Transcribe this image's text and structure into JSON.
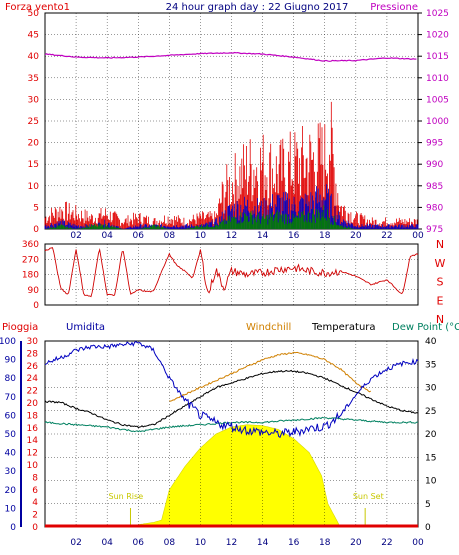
{
  "header": {
    "title": "24 hour graph day : 22 Giugno 2017",
    "left_label": "Forza vento1",
    "right_label": "Pressione"
  },
  "chart_data": [
    {
      "type": "line",
      "name": "wind-pressure",
      "x_ticks": [
        "02",
        "04",
        "06",
        "08",
        "10",
        "12",
        "14",
        "16",
        "18",
        "20",
        "22",
        "00"
      ],
      "y_left_ticks": [
        "0",
        "5",
        "10",
        "15",
        "20",
        "25",
        "30",
        "35",
        "40",
        "45",
        "50"
      ],
      "y_left_range": [
        0,
        50
      ],
      "y_right_ticks": [
        "975",
        "980",
        "985",
        "990",
        "995",
        "1000",
        "1005",
        "1010",
        "1015",
        "1020",
        "1025"
      ],
      "y_right_range": [
        975,
        1025
      ],
      "series": [
        {
          "name": "Forza vento1",
          "color": "#e00000",
          "x": [
            0,
            1,
            2,
            3,
            4,
            5,
            6,
            7,
            8,
            9,
            10,
            11,
            11.5,
            12,
            13,
            14,
            15,
            16,
            17,
            18,
            18.3,
            18.6,
            19,
            20,
            21,
            22,
            23,
            24
          ],
          "y": [
            3,
            5,
            4,
            3,
            4,
            2,
            3,
            2,
            3,
            2,
            3,
            3,
            10,
            12,
            16,
            17,
            15,
            17,
            18,
            19,
            25,
            16,
            6,
            3,
            2,
            2,
            2,
            2
          ]
        },
        {
          "name": "",
          "color": "#0000c0",
          "x": [
            0,
            1,
            2,
            3,
            4,
            5,
            6,
            7,
            8,
            9,
            10,
            11,
            12,
            13,
            14,
            15,
            16,
            17,
            18,
            19,
            20,
            21,
            22,
            23,
            24
          ],
          "y": [
            1,
            2,
            1,
            1,
            2,
            0,
            1,
            1,
            1,
            1,
            1,
            2,
            6,
            7,
            6,
            8,
            7,
            8,
            10,
            3,
            1,
            1,
            1,
            1,
            1
          ]
        },
        {
          "name": "",
          "color": "#008000",
          "x": [
            0,
            1,
            2,
            3,
            4,
            5,
            6,
            7,
            8,
            9,
            10,
            11,
            12,
            13,
            14,
            15,
            16,
            17,
            18,
            19,
            20,
            21,
            22,
            23,
            24
          ],
          "y": [
            0,
            1,
            0,
            1,
            1,
            0,
            0,
            1,
            0,
            0,
            1,
            1,
            3,
            4,
            3,
            4,
            3,
            4,
            5,
            1,
            0,
            0,
            0,
            0,
            0
          ]
        },
        {
          "name": "Pressione",
          "color": "#c000c0",
          "axis": "right",
          "x": [
            0,
            2,
            4,
            6,
            8,
            10,
            12,
            14,
            16,
            18,
            20,
            22,
            24
          ],
          "y": [
            1015.5,
            1014.8,
            1014.6,
            1014.8,
            1015.2,
            1015.6,
            1015.8,
            1015.5,
            1014.8,
            1013.9,
            1014.0,
            1014.6,
            1014.3
          ]
        }
      ]
    },
    {
      "type": "line",
      "name": "wind-direction",
      "y_ticks": [
        "360",
        "270",
        "180",
        "90",
        "0"
      ],
      "y_range": [
        0,
        360
      ],
      "compass": [
        "N",
        "W",
        "S",
        "E",
        "N"
      ],
      "series": [
        {
          "name": "direction",
          "color": "#d00000",
          "x": [
            0,
            0.5,
            1,
            1.5,
            2,
            2.5,
            3,
            3.5,
            4,
            4.5,
            5,
            5.5,
            6,
            6.5,
            7,
            7.5,
            8,
            8.5,
            9,
            9.5,
            10,
            10.5,
            11,
            11.5,
            12,
            13,
            14,
            15,
            16,
            17,
            18,
            19,
            20,
            21,
            22,
            23,
            23.5,
            24
          ],
          "y": [
            320,
            340,
            100,
            60,
            330,
            60,
            50,
            340,
            60,
            60,
            340,
            60,
            90,
            80,
            80,
            200,
            300,
            230,
            200,
            160,
            320,
            60,
            210,
            100,
            200,
            180,
            190,
            210,
            220,
            200,
            190,
            200,
            170,
            120,
            150,
            60,
            290,
            300
          ]
        }
      ]
    },
    {
      "type": "line",
      "name": "temperature-humidity",
      "labels": [
        "Pioggia",
        "Umidita",
        "Windchill",
        "Temperatura",
        "Dew Point (°C"
      ],
      "y_rain_ticks": [
        "0",
        "2",
        "4",
        "6",
        "8",
        "10",
        "12",
        "14",
        "16",
        "18",
        "20",
        "22",
        "24",
        "26",
        "28",
        "30"
      ],
      "y_hum_ticks": [
        "0",
        "10",
        "20",
        "30",
        "40",
        "50",
        "60",
        "70",
        "80",
        "90",
        "100"
      ],
      "y_temp_ticks": [
        "0",
        "5",
        "10",
        "15",
        "20",
        "25",
        "30",
        "35",
        "40"
      ],
      "temp_range": [
        0,
        40
      ],
      "humidity_range": [
        0,
        100
      ],
      "annotations": [
        "Sun Rise",
        "Sun Set"
      ],
      "series": [
        {
          "name": "Umidita",
          "color": "#0000c0",
          "axis": "humidity",
          "x": [
            0,
            1,
            2,
            3,
            4,
            5,
            6,
            7,
            8,
            9,
            10,
            11,
            12,
            13,
            14,
            15,
            16,
            17,
            18,
            19,
            20,
            21,
            22,
            23,
            24
          ],
          "y": [
            88,
            91,
            95,
            97,
            97,
            98,
            99,
            95,
            80,
            68,
            60,
            56,
            54,
            52,
            51,
            50,
            51,
            53,
            54,
            60,
            71,
            80,
            85,
            88,
            89
          ]
        },
        {
          "name": "Windchill",
          "color": "#d08000",
          "axis": "temp",
          "x": [
            8,
            9,
            10,
            11,
            12,
            13,
            14,
            15,
            16,
            17,
            18,
            19,
            20,
            21
          ],
          "y": [
            27,
            28.5,
            30,
            31.5,
            33,
            34.5,
            36,
            37,
            37.5,
            37,
            36,
            34,
            31,
            29
          ]
        },
        {
          "name": "Temperatura",
          "color": "#000000",
          "axis": "temp",
          "x": [
            0,
            1,
            2,
            3,
            4,
            5,
            6,
            7,
            8,
            9,
            10,
            11,
            12,
            13,
            14,
            15,
            16,
            17,
            18,
            19,
            20,
            21,
            22,
            23,
            24
          ],
          "y": [
            27,
            26.8,
            25.5,
            24.5,
            23,
            22,
            21.5,
            22,
            24,
            26,
            28,
            30,
            31,
            32,
            33,
            33.5,
            33.5,
            33,
            32,
            30.5,
            29,
            27.5,
            26,
            25,
            24.5
          ]
        },
        {
          "name": "Dew Point (°C",
          "color": "#008060",
          "axis": "temp",
          "x": [
            0,
            2,
            4,
            6,
            8,
            10,
            12,
            14,
            16,
            18,
            20,
            22,
            24
          ],
          "y": [
            22.5,
            22,
            21.5,
            20.5,
            21.5,
            22,
            22.5,
            22.5,
            23,
            23.5,
            23,
            22.5,
            22.5
          ]
        },
        {
          "name": "solar",
          "color": "#ffff00",
          "axis": "temp",
          "x": [
            5.5,
            6,
            7,
            7.5,
            8,
            9,
            10,
            11,
            12,
            13,
            14,
            15,
            16,
            17,
            17.8,
            18.2,
            19
          ],
          "y": [
            0,
            0.5,
            1,
            1.5,
            8,
            13,
            17,
            20,
            21.5,
            22,
            21.8,
            21,
            19,
            16,
            11,
            5,
            0
          ]
        }
      ]
    }
  ]
}
